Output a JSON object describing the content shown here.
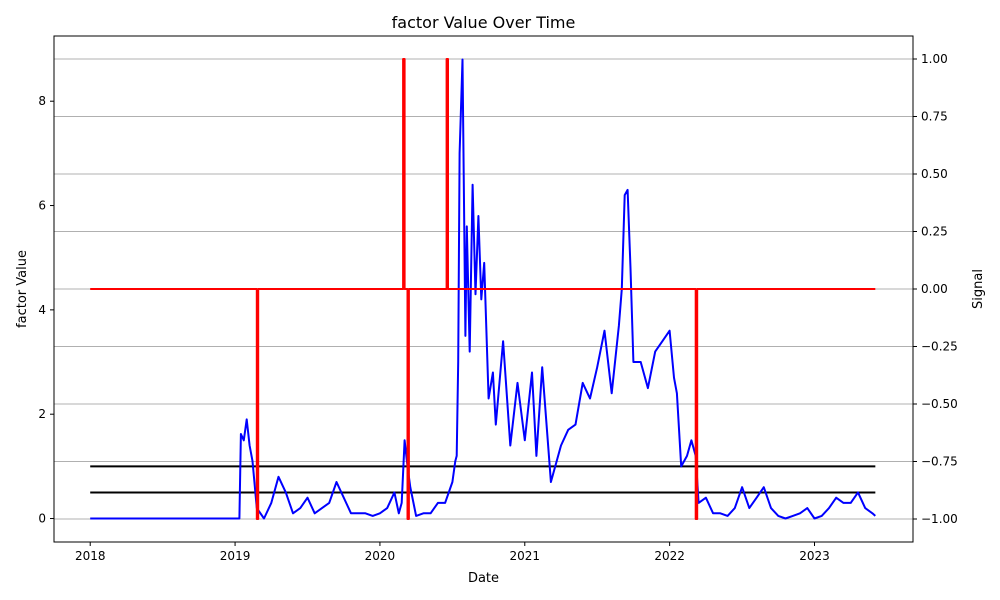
{
  "chart_data": {
    "type": "line",
    "title": "factor Value Over Time",
    "xlabel": "Date",
    "ylabel": "factor Value",
    "ylabel_right": "Signal",
    "xlim": [
      2017.75,
      2023.68
    ],
    "ylim": [
      -0.45,
      9.25
    ],
    "ylim_right": [
      -1.1,
      1.1
    ],
    "x_ticks": [
      2018,
      2019,
      2020,
      2021,
      2022,
      2023
    ],
    "x_tick_labels": [
      "2018",
      "2019",
      "2020",
      "2021",
      "2022",
      "2023"
    ],
    "y_ticks": [
      0,
      2,
      4,
      6,
      8
    ],
    "y_tick_labels": [
      "0",
      "2",
      "4",
      "6",
      "8"
    ],
    "y_right_ticks": [
      -1.0,
      -0.75,
      -0.5,
      -0.25,
      0.0,
      0.25,
      0.5,
      0.75,
      1.0
    ],
    "y_right_tick_labels": [
      "−1.00",
      "−0.75",
      "−0.50",
      "−0.25",
      "0.00",
      "0.25",
      "0.50",
      "0.75",
      "1.00"
    ],
    "grid": "right-axis horizontal",
    "colors": {
      "factor": "#0000ff",
      "signal": "#ff0000",
      "threshold": "#000000",
      "grid": "#b0b0b0"
    },
    "series": [
      {
        "axis": "left",
        "color": "#0000ff",
        "x": [
          2018.0,
          2019.03,
          2019.04,
          2019.06,
          2019.08,
          2019.1,
          2019.12,
          2019.15,
          2019.2,
          2019.25,
          2019.3,
          2019.35,
          2019.4,
          2019.45,
          2019.5,
          2019.55,
          2019.6,
          2019.65,
          2019.7,
          2019.8,
          2019.9,
          2019.95,
          2020.0,
          2020.05,
          2020.1,
          2020.13,
          2020.15,
          2020.17,
          2020.19,
          2020.21,
          2020.25,
          2020.3,
          2020.35,
          2020.4,
          2020.45,
          2020.5,
          2020.52,
          2020.53,
          2020.54,
          2020.55,
          2020.57,
          2020.59,
          2020.6,
          2020.62,
          2020.64,
          2020.66,
          2020.68,
          2020.7,
          2020.72,
          2020.75,
          2020.78,
          2020.8,
          2020.85,
          2020.9,
          2020.95,
          2021.0,
          2021.05,
          2021.08,
          2021.12,
          2021.18,
          2021.25,
          2021.3,
          2021.35,
          2021.4,
          2021.45,
          2021.5,
          2021.55,
          2021.6,
          2021.65,
          2021.67,
          2021.69,
          2021.71,
          2021.73,
          2021.75,
          2021.8,
          2021.85,
          2021.9,
          2021.95,
          2022.0,
          2022.03,
          2022.05,
          2022.08,
          2022.12,
          2022.15,
          2022.18,
          2022.2,
          2022.25,
          2022.3,
          2022.35,
          2022.4,
          2022.45,
          2022.5,
          2022.55,
          2022.6,
          2022.65,
          2022.7,
          2022.75,
          2022.8,
          2022.85,
          2022.9,
          2022.95,
          2023.0,
          2023.05,
          2023.1,
          2023.15,
          2023.2,
          2023.25,
          2023.3,
          2023.35,
          2023.4,
          2023.42
        ],
        "values": [
          0.0,
          0.0,
          1.62,
          1.5,
          1.9,
          1.4,
          1.1,
          0.2,
          0.0,
          0.3,
          0.8,
          0.5,
          0.1,
          0.2,
          0.4,
          0.1,
          0.2,
          0.3,
          0.7,
          0.1,
          0.1,
          0.05,
          0.1,
          0.2,
          0.5,
          0.1,
          0.3,
          1.5,
          1.0,
          0.6,
          0.05,
          0.1,
          0.1,
          0.3,
          0.3,
          0.7,
          1.1,
          1.2,
          3.0,
          7.0,
          8.8,
          3.5,
          5.6,
          3.2,
          6.4,
          4.3,
          5.8,
          4.2,
          4.9,
          2.3,
          2.8,
          1.8,
          3.4,
          1.4,
          2.6,
          1.5,
          2.8,
          1.2,
          2.9,
          0.7,
          1.4,
          1.7,
          1.8,
          2.6,
          2.3,
          2.9,
          3.6,
          2.4,
          3.7,
          4.4,
          6.2,
          6.3,
          4.8,
          3.0,
          3.0,
          2.5,
          3.2,
          3.4,
          3.6,
          2.7,
          2.4,
          1.0,
          1.2,
          1.5,
          1.2,
          0.3,
          0.4,
          0.1,
          0.1,
          0.05,
          0.2,
          0.6,
          0.2,
          0.4,
          0.6,
          0.2,
          0.05,
          0.0,
          0.05,
          0.1,
          0.2,
          0.0,
          0.05,
          0.2,
          0.4,
          0.3,
          0.3,
          0.5,
          0.2,
          0.1,
          0.05
        ]
      },
      {
        "axis": "right",
        "color": "#ff0000",
        "x": [
          2018.0,
          2019.15,
          2019.15,
          2019.16,
          2019.16,
          2020.16,
          2020.16,
          2020.17,
          2020.17,
          2020.19,
          2020.19,
          2020.2,
          2020.2,
          2020.46,
          2020.46,
          2020.47,
          2020.47,
          2022.18,
          2022.18,
          2022.19,
          2022.19,
          2023.42
        ],
        "values": [
          0,
          0,
          -1,
          -1,
          0,
          0,
          1,
          1,
          0,
          0,
          -1,
          -1,
          0,
          0,
          1,
          1,
          0,
          0,
          -1,
          -1,
          0,
          0
        ]
      }
    ],
    "hlines": [
      {
        "axis": "left",
        "y": 1.0,
        "x_range": [
          2018.0,
          2023.42
        ],
        "color": "#000000"
      },
      {
        "axis": "left",
        "y": 0.5,
        "x_range": [
          2018.0,
          2023.42
        ],
        "color": "#000000"
      }
    ]
  }
}
